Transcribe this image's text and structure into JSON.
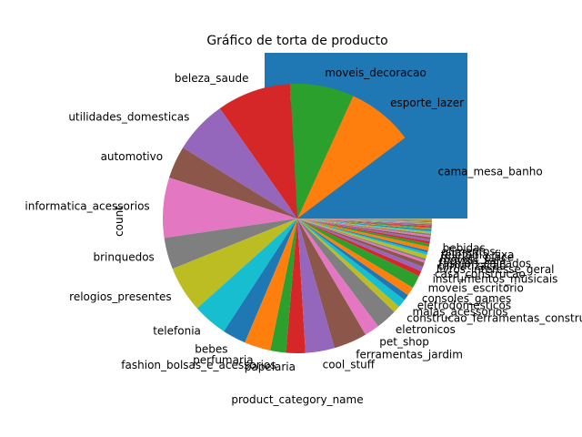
{
  "chart_data": {
    "type": "pie",
    "title": "Gráfico de torta de producto",
    "xlabel": "product_category_name",
    "ylabel": "count",
    "slices": [
      {
        "label": "cama_mesa_banho",
        "value": 11115
      },
      {
        "label": "esporte_lazer",
        "value": 8641
      },
      {
        "label": "moveis_decoracao",
        "value": 8334
      },
      {
        "label": "beleza_saude",
        "value": 9670
      },
      {
        "label": "utilidades_domesticas",
        "value": 6964
      },
      {
        "label": "automotivo",
        "value": 4235
      },
      {
        "label": "informatica_acessorios",
        "value": 7827
      },
      {
        "label": "brinquedos",
        "value": 4117
      },
      {
        "label": "relogios_presentes",
        "value": 5991
      },
      {
        "label": "telefonia",
        "value": 4545
      },
      {
        "label": "bebes",
        "value": 3065
      },
      {
        "label": "perfumaria",
        "value": 3419
      },
      {
        "label": "fashion_bolsas_e_acessorios",
        "value": 2031
      },
      {
        "label": "papelaria",
        "value": 2517
      },
      {
        "label": "cool_stuff",
        "value": 3796
      },
      {
        "label": "ferramentas_jardim",
        "value": 4347
      },
      {
        "label": "pet_shop",
        "value": 1947
      },
      {
        "label": "eletronicos",
        "value": 2767
      },
      {
        "label": "construcao_ferramentas_construcao",
        "value": 929
      },
      {
        "label": "malas_acessorios",
        "value": 1092
      },
      {
        "label": "eletrodomesticos",
        "value": 771
      },
      {
        "label": "consoles_games",
        "value": 1137
      },
      {
        "label": "moveis_escritorio",
        "value": 1691
      },
      {
        "label": "instrumentos_musicais",
        "value": 680
      },
      {
        "label": "casa_construcao",
        "value": 604
      },
      {
        "label": "livros_interesse_geral",
        "value": 553
      },
      {
        "label": "climatizacao",
        "value": 297
      },
      {
        "label": "fashion_calcados",
        "value": 262
      },
      {
        "label": "moveis_sala",
        "value": 503
      },
      {
        "label": "market_place",
        "value": 311
      },
      {
        "label": "telefonia_fixa",
        "value": 264
      },
      {
        "label": "alimentos",
        "value": 510
      },
      {
        "label": "bebidas",
        "value": 379
      },
      {
        "label": "",
        "value": 300
      },
      {
        "label": "",
        "value": 280
      },
      {
        "label": "",
        "value": 260
      },
      {
        "label": "",
        "value": 240
      },
      {
        "label": "",
        "value": 220
      },
      {
        "label": "",
        "value": 200
      },
      {
        "label": "",
        "value": 180
      },
      {
        "label": "",
        "value": 165
      },
      {
        "label": "",
        "value": 150
      },
      {
        "label": "",
        "value": 140
      },
      {
        "label": "",
        "value": 130
      },
      {
        "label": "",
        "value": 120
      },
      {
        "label": "",
        "value": 110
      },
      {
        "label": "",
        "value": 100
      },
      {
        "label": "",
        "value": 90
      },
      {
        "label": "",
        "value": 80
      },
      {
        "label": "",
        "value": 70
      },
      {
        "label": "",
        "value": 60
      },
      {
        "label": "",
        "value": 55
      },
      {
        "label": "",
        "value": 50
      },
      {
        "label": "",
        "value": 45
      },
      {
        "label": "",
        "value": 40
      },
      {
        "label": "",
        "value": 35
      },
      {
        "label": "",
        "value": 30
      },
      {
        "label": "",
        "value": 25
      },
      {
        "label": "",
        "value": 20
      },
      {
        "label": "",
        "value": 15
      },
      {
        "label": "",
        "value": 12
      },
      {
        "label": "",
        "value": 10
      },
      {
        "label": "",
        "value": 8
      },
      {
        "label": "",
        "value": 6
      },
      {
        "label": "",
        "value": 5
      },
      {
        "label": "",
        "value": 4
      },
      {
        "label": "",
        "value": 3
      },
      {
        "label": "",
        "value": 2
      }
    ],
    "colors": [
      "#1f77b4",
      "#ff7f0e",
      "#2ca02c",
      "#d62728",
      "#9467bd",
      "#8c564b",
      "#e377c2",
      "#7f7f7f",
      "#bcbd22",
      "#17becf"
    ],
    "legend": false,
    "grid": false
  }
}
